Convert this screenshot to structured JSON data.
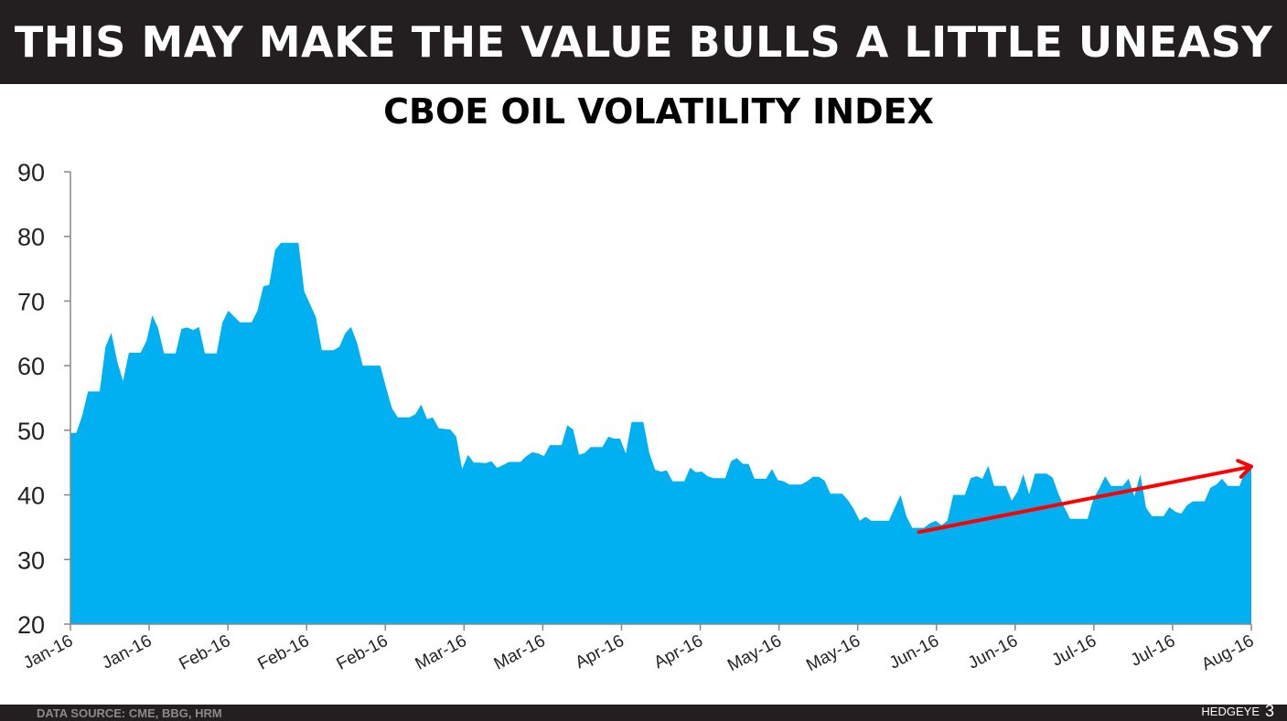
{
  "header": {
    "title": "THIS MAY MAKE THE VALUE BULLS A LITTLE UNEASY"
  },
  "footer": {
    "source": "DATA SOURCE: CME, BBG, HRM",
    "brand": "HEDGEYE",
    "page": "3"
  },
  "chart_data": {
    "type": "area",
    "title": "CBOE OIL VOLATILITY INDEX",
    "xlabel": "",
    "ylabel": "",
    "ylim": [
      20,
      90
    ],
    "yticks": [
      20,
      30,
      40,
      50,
      60,
      70,
      80,
      90
    ],
    "xtick_labels": [
      "Jan-16",
      "Jan-16",
      "Feb-16",
      "Feb-16",
      "Feb-16",
      "Mar-16",
      "Mar-16",
      "Apr-16",
      "Apr-16",
      "May-16",
      "May-16",
      "Jun-16",
      "Jun-16",
      "Jul-16",
      "Jul-16",
      "Aug-16"
    ],
    "grid": false,
    "legend": "none",
    "fill_color": "#00b0f0",
    "series": [
      {
        "values": [
          49.6,
          49.6,
          52.2,
          56,
          56,
          56,
          62.9,
          65.1,
          60.7,
          57.6,
          62,
          62,
          62,
          63.8,
          67.8,
          65.8,
          61.9,
          61.9,
          61.9,
          65.7,
          65.9,
          65.5,
          66,
          61.9,
          61.9,
          61.9,
          66.7,
          68.5,
          67.6,
          66.7,
          66.7,
          66.7,
          68.5,
          72.3,
          72.5,
          77.9,
          79,
          79,
          79,
          79,
          71.5,
          69.5,
          67.5,
          62.4,
          62.4,
          62.4,
          62.9,
          65,
          66,
          63.6,
          60,
          60,
          60,
          60,
          56.6,
          53.4,
          52,
          52,
          52,
          52.5,
          54,
          51.7,
          52,
          50.3,
          50.2,
          50.1,
          49,
          44,
          46.2,
          45,
          45,
          44.9,
          45.2,
          44.2,
          44.6,
          45.1,
          45.1,
          45.1,
          46,
          46.6,
          46.4,
          46,
          47.7,
          47.7,
          47.7,
          50.8,
          50.1,
          46.2,
          46.5,
          47.4,
          47.4,
          47.4,
          49,
          48.7,
          48.7,
          46.4,
          51.3,
          51.3,
          51.3,
          46.6,
          43.9,
          43.6,
          43.8,
          42.1,
          42.1,
          42.1,
          44.2,
          43.5,
          43.6,
          42.9,
          42.6,
          42.6,
          42.6,
          45.2,
          45.7,
          44.8,
          44.8,
          42.5,
          42.5,
          42.5,
          44,
          42.3,
          42.1,
          41.6,
          41.6,
          41.6,
          42.1,
          42.8,
          42.8,
          42.2,
          40.2,
          40.2,
          40.2,
          39.2,
          37.8,
          36,
          36.6,
          36,
          36,
          36,
          36,
          38,
          40,
          36.7,
          34.9,
          34.9,
          34.9,
          35.6,
          36,
          35.3,
          36,
          40,
          40,
          40,
          42.6,
          42.9,
          42.5,
          44.5,
          41.4,
          41.4,
          41.4,
          39.1,
          40.5,
          43.2,
          40.1,
          43.3,
          43.3,
          43.3,
          42.7,
          40.2,
          38.1,
          36.3,
          36.3,
          36.3,
          36.3,
          39.4,
          41,
          42.9,
          41.4,
          41.4,
          41.4,
          42.5,
          39.8,
          43.2,
          38,
          36.7,
          36.7,
          36.7,
          38.1,
          37.4,
          37.1,
          38.4,
          39,
          39,
          39,
          41.1,
          41.6,
          42.5,
          41.4,
          41.4,
          41.4,
          43.9,
          44.3
        ]
      }
    ],
    "annotations": [
      {
        "type": "trend-arrow",
        "from_value": 34.2,
        "to_value": 44.4,
        "color": "#ff0000"
      }
    ]
  }
}
